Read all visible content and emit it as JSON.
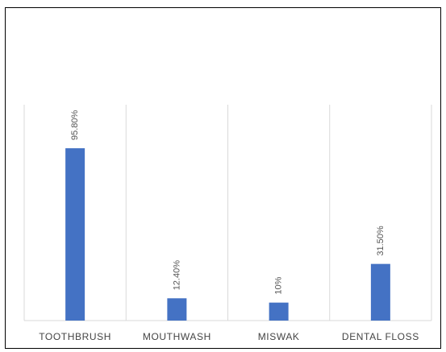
{
  "chart_data": {
    "type": "bar",
    "categories": [
      "TOOTHBRUSH",
      "MOUTHWASH",
      "MISWAK",
      "DENTAL FLOSS"
    ],
    "values": [
      95.8,
      12.4,
      10,
      31.5
    ],
    "data_labels": [
      "95.80%",
      "12.40%",
      "10%",
      "31.50%"
    ],
    "title": "",
    "xlabel": "",
    "ylabel": "",
    "ylim": [
      0,
      120
    ],
    "grid": "vertical category separators",
    "legend": "none",
    "bar_color": "#4472c4"
  }
}
